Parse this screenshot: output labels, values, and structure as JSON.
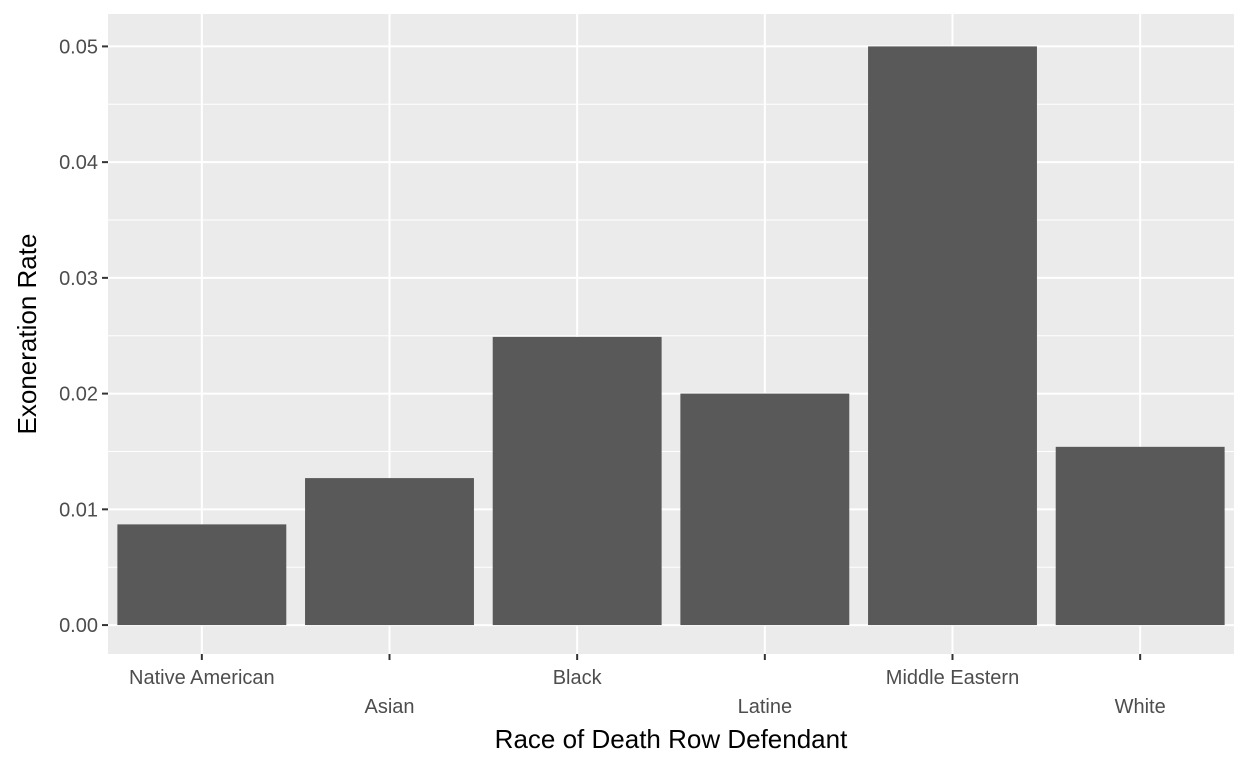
{
  "chart_data": {
    "type": "bar",
    "title": "",
    "xlabel": "Race of Death Row Defendant",
    "ylabel": "Exoneration Rate",
    "categories": [
      "Native American",
      "Asian",
      "Black",
      "Latine",
      "Middle Eastern",
      "White"
    ],
    "values": [
      0.0087,
      0.0127,
      0.0249,
      0.02,
      0.05,
      0.0154
    ],
    "ylim": [
      -0.0025,
      0.0528
    ],
    "yticks": [
      0.0,
      0.01,
      0.02,
      0.03,
      0.04,
      0.05
    ],
    "ytick_labels": [
      "0.00",
      "0.01",
      "0.02",
      "0.03",
      "0.04",
      "0.05"
    ],
    "grid": true,
    "legend": "none",
    "colors": {
      "bar": "#595959",
      "panel_background": "#ebebeb",
      "grid": "#ffffff",
      "tick_text": "#4d4d4d",
      "axis_title_text": "#000000"
    }
  }
}
